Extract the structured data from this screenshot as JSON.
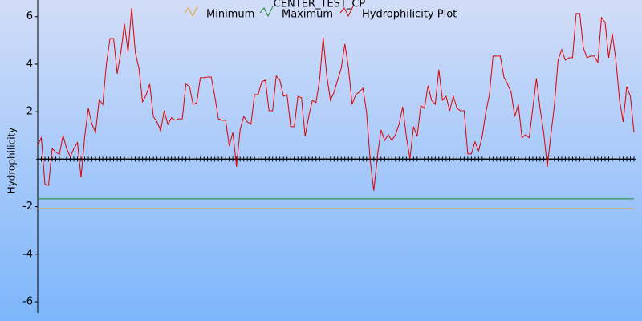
{
  "chart_data": {
    "type": "line",
    "title": "CENTER_TEST_CP",
    "ylabel": "Hydrophilicity",
    "ylim": [
      -6.47,
      6.7
    ],
    "yticks": [
      -6,
      -4,
      -2,
      2,
      4,
      6
    ],
    "grid": false,
    "zero_line": true,
    "reference_lines": [
      {
        "name": "Minimum",
        "color": "#e8a030",
        "value": -2.08
      },
      {
        "name": "Maximum",
        "color": "#1a8a2a",
        "value": -1.67
      }
    ],
    "series": [
      {
        "name": "Hydrophilicity Plot",
        "color": "#e00000",
        "values": [
          0.6,
          0.9,
          -1.06,
          -1.1,
          0.45,
          0.3,
          0.2,
          1.0,
          0.45,
          0.1,
          0.45,
          0.7,
          -0.76,
          0.95,
          2.15,
          1.47,
          1.13,
          2.5,
          2.3,
          4.0,
          5.08,
          5.08,
          3.6,
          4.5,
          5.7,
          4.5,
          6.37,
          4.5,
          3.83,
          2.42,
          2.7,
          3.16,
          1.8,
          1.57,
          1.2,
          2.04,
          1.47,
          1.74,
          1.64,
          1.7,
          1.7,
          3.16,
          3.06,
          2.3,
          2.38,
          3.43,
          3.43,
          3.46,
          3.46,
          2.65,
          1.7,
          1.64,
          1.64,
          0.56,
          1.13,
          -0.32,
          1.23,
          1.8,
          1.57,
          1.47,
          2.72,
          2.72,
          3.26,
          3.33,
          2.04,
          2.04,
          3.5,
          3.33,
          2.65,
          2.72,
          1.37,
          1.37,
          2.65,
          2.58,
          0.96,
          1.8,
          2.48,
          2.38,
          3.33,
          5.12,
          3.5,
          2.48,
          2.82,
          3.33,
          3.83,
          4.85,
          3.83,
          2.31,
          2.72,
          2.82,
          2.99,
          1.98,
          -0.05,
          -1.33,
          0.12,
          1.23,
          0.79,
          1.03,
          0.79,
          1.03,
          1.47,
          2.21,
          0.96,
          0.02,
          1.37,
          0.96,
          2.25,
          2.15,
          3.09,
          2.48,
          2.31,
          3.77,
          2.48,
          2.65,
          2.04,
          2.65,
          2.15,
          2.04,
          2.04,
          0.22,
          0.22,
          0.73,
          0.35,
          0.96,
          1.98,
          2.72,
          4.34,
          4.34,
          4.34,
          3.46,
          3.16,
          2.82,
          1.8,
          2.31,
          0.9,
          1.03,
          0.9,
          2.15,
          3.4,
          2.15,
          1.13,
          -0.32,
          1.03,
          2.31,
          4.17,
          4.61,
          4.17,
          4.27,
          4.27,
          6.13,
          6.13,
          4.68,
          4.27,
          4.34,
          4.34,
          4.07,
          5.96,
          5.76,
          4.27,
          5.29,
          4.17,
          2.48,
          1.57,
          3.06,
          2.65,
          1.13
        ]
      }
    ]
  }
}
